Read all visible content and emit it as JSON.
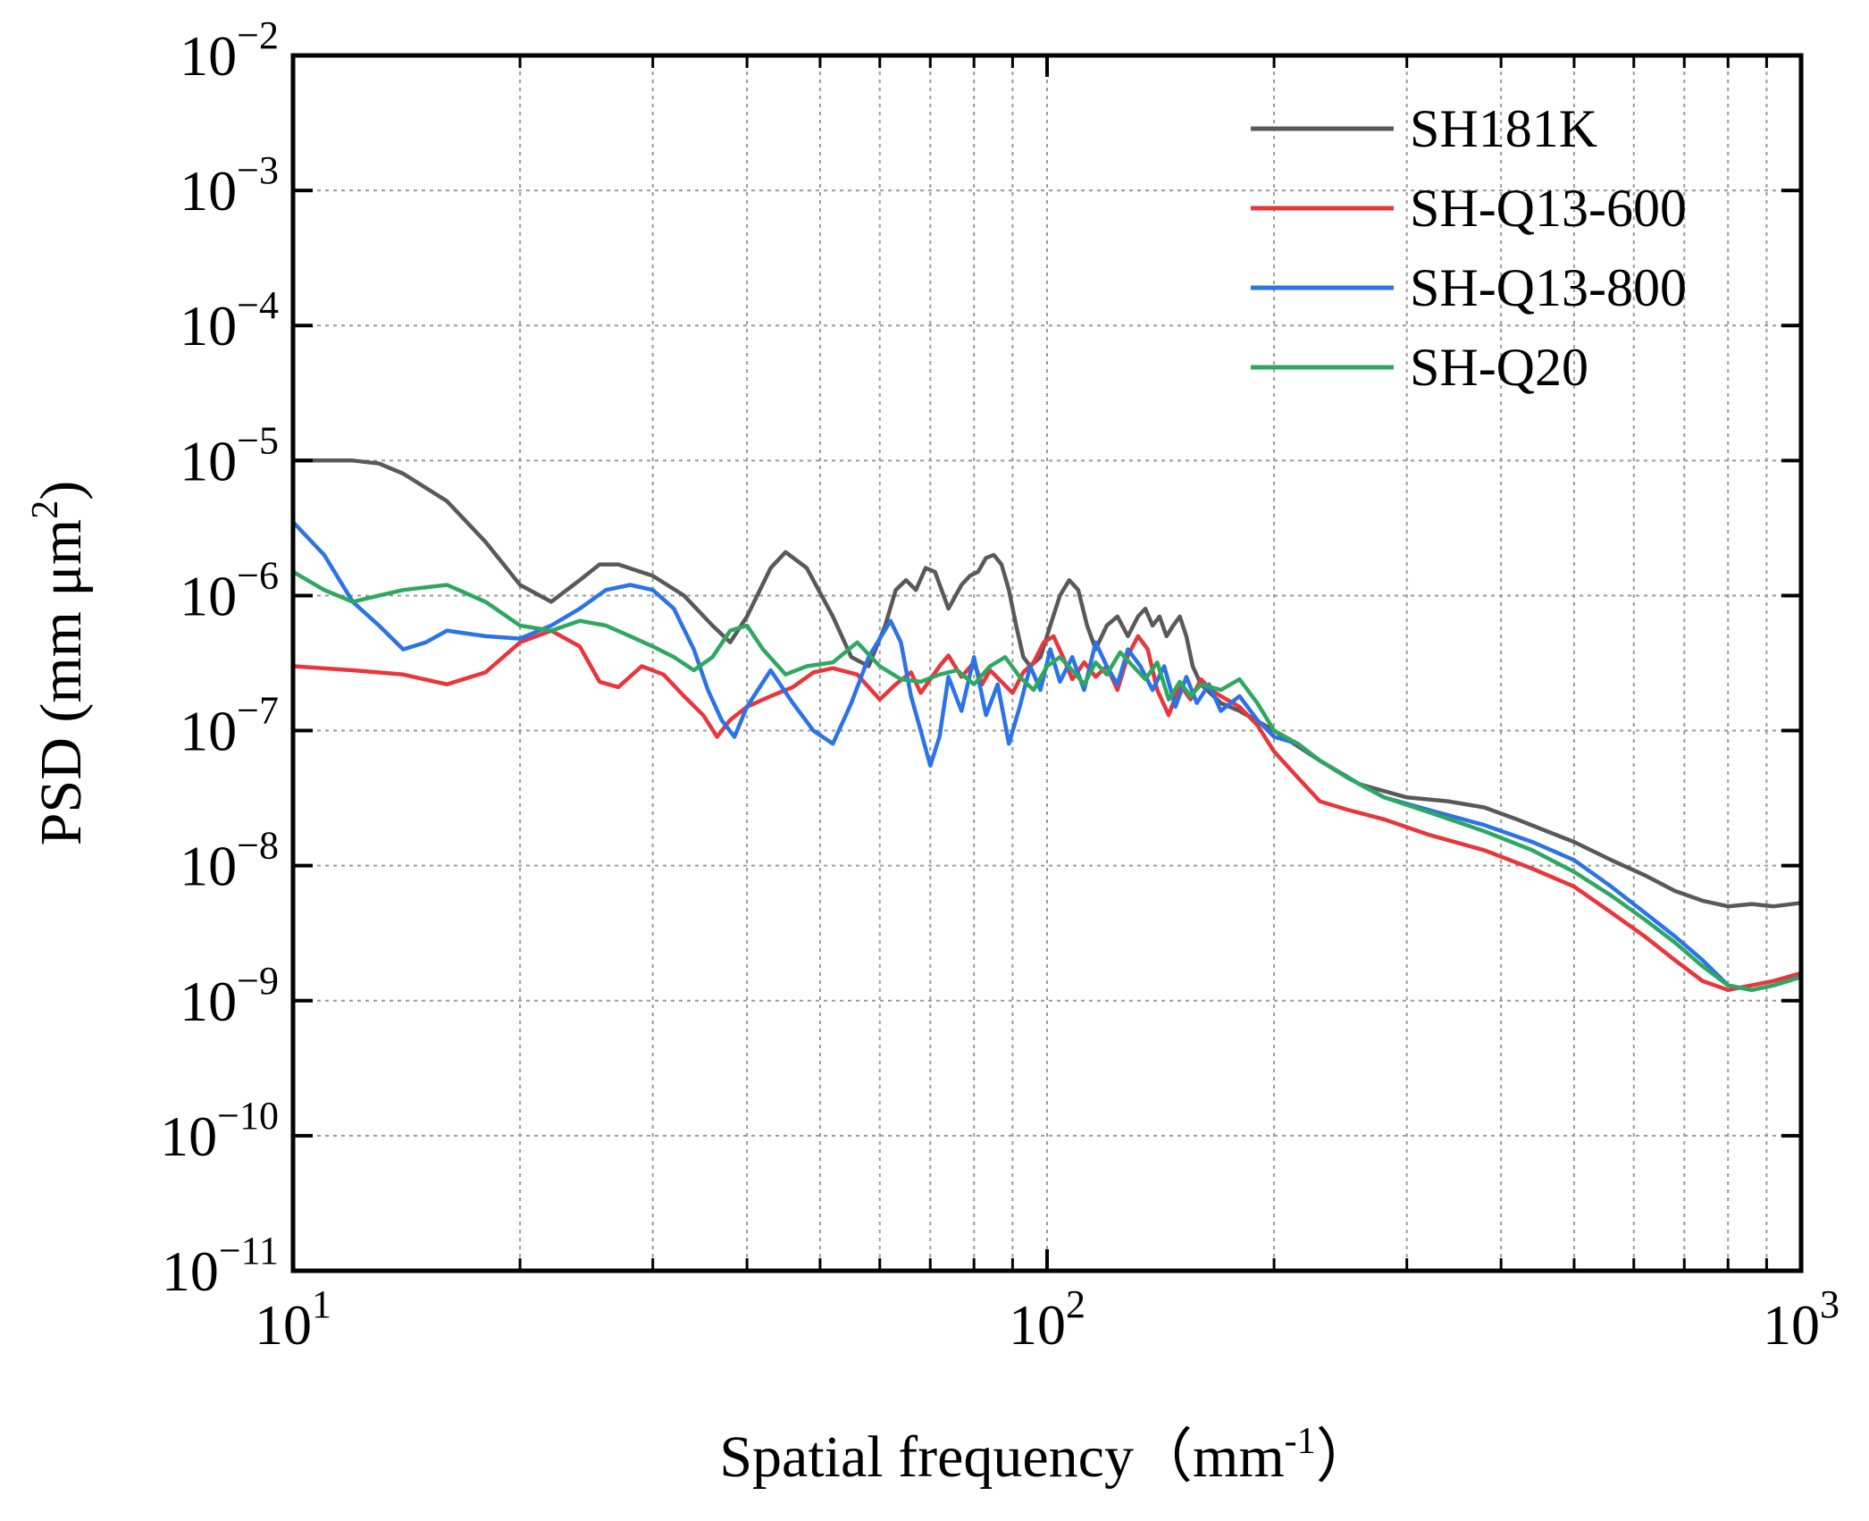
{
  "chart_data": {
    "type": "line",
    "xscale": "log",
    "yscale": "log",
    "xlim": [
      10,
      1000
    ],
    "ylim": [
      1e-11,
      0.01
    ],
    "grid": true,
    "legend_position": "top-right",
    "xlabel": {
      "main": "Spatial frequency",
      "open": "（",
      "unit": "mm",
      "sup": "-1",
      "close": "）"
    },
    "ylabel": {
      "main": "PSD (mm μm",
      "sup": "2",
      "close": ")"
    },
    "x_ticks": [
      {
        "base": "10",
        "exp": "1"
      },
      {
        "base": "10",
        "exp": "2"
      },
      {
        "base": "10",
        "exp": "3"
      }
    ],
    "y_ticks": [
      {
        "base": "10",
        "exp": "−2"
      },
      {
        "base": "10",
        "exp": "−3"
      },
      {
        "base": "10",
        "exp": "−4"
      },
      {
        "base": "10",
        "exp": "−5"
      },
      {
        "base": "10",
        "exp": "−6"
      },
      {
        "base": "10",
        "exp": "−7"
      },
      {
        "base": "10",
        "exp": "−8"
      },
      {
        "base": "10",
        "exp": "−9"
      },
      {
        "base": "10",
        "exp": "−10"
      },
      {
        "base": "10",
        "exp": "−11"
      }
    ],
    "series": [
      {
        "name": "SH181K",
        "color": "#595959",
        "x": [
          10,
          11,
          12,
          13,
          14,
          16,
          18,
          20,
          22,
          24,
          25.5,
          27,
          30,
          33,
          36,
          38,
          40,
          43,
          45,
          48,
          52,
          55,
          58,
          61,
          63,
          65,
          67,
          69,
          71,
          74,
          77,
          79,
          81,
          83,
          85,
          87,
          89,
          91,
          93,
          95,
          98,
          101,
          104,
          107,
          110,
          113,
          116,
          120,
          124,
          128,
          132,
          135,
          138,
          141,
          144,
          147,
          150,
          153,
          156,
          160,
          170,
          180,
          200,
          230,
          260,
          300,
          340,
          380,
          420,
          460,
          500,
          560,
          620,
          680,
          740,
          800,
          860,
          920,
          1000
        ],
        "y": [
          1e-05,
          1e-05,
          1e-05,
          9.5e-06,
          8e-06,
          5e-06,
          2.5e-06,
          1.2e-06,
          9e-07,
          1.3e-06,
          1.7e-06,
          1.7e-06,
          1.4e-06,
          1e-06,
          6e-07,
          4.5e-07,
          7e-07,
          1.6e-06,
          2.1e-06,
          1.6e-06,
          7e-07,
          3.5e-07,
          3e-07,
          6e-07,
          1.1e-06,
          1.3e-06,
          1.1e-06,
          1.6e-06,
          1.5e-06,
          8e-07,
          1.2e-06,
          1.4e-06,
          1.5e-06,
          1.9e-06,
          2e-06,
          1.7e-06,
          1.1e-06,
          6e-07,
          3.5e-07,
          3e-07,
          3.5e-07,
          6e-07,
          1e-06,
          1.3e-06,
          1.1e-06,
          6e-07,
          4e-07,
          6e-07,
          7e-07,
          5e-07,
          7e-07,
          8e-07,
          6e-07,
          7e-07,
          5e-07,
          6e-07,
          7e-07,
          5e-07,
          3e-07,
          2.2e-07,
          1.6e-07,
          1.4e-07,
          1e-07,
          6e-08,
          4e-08,
          3.2e-08,
          3e-08,
          2.7e-08,
          2.2e-08,
          1.8e-08,
          1.5e-08,
          1.1e-08,
          8.5e-09,
          6.5e-09,
          5.5e-09,
          5e-09,
          5.2e-09,
          5e-09,
          5.3e-09
        ]
      },
      {
        "name": "SH-Q13-600",
        "color": "#e8363a",
        "x": [
          10,
          12,
          14,
          16,
          18,
          20,
          22,
          24,
          25.5,
          27,
          29,
          31,
          33,
          35,
          36.5,
          38,
          40,
          43,
          46,
          49,
          52,
          56,
          60,
          63,
          66,
          68,
          70,
          72,
          74,
          77,
          80,
          82,
          84,
          87,
          90,
          93,
          96,
          99,
          102,
          105,
          108,
          112,
          116,
          120,
          124,
          128,
          132,
          136,
          140,
          145,
          150,
          155,
          160,
          165,
          170,
          180,
          190,
          200,
          215,
          230,
          250,
          280,
          320,
          380,
          440,
          500,
          560,
          620,
          680,
          740,
          800,
          860,
          920,
          1000
        ],
        "y": [
          3e-07,
          2.8e-07,
          2.6e-07,
          2.2e-07,
          2.7e-07,
          4.5e-07,
          5.5e-07,
          4.2e-07,
          2.3e-07,
          2.1e-07,
          3e-07,
          2.6e-07,
          1.8e-07,
          1.3e-07,
          9e-08,
          1.2e-07,
          1.5e-07,
          1.8e-07,
          2.1e-07,
          2.7e-07,
          2.9e-07,
          2.6e-07,
          1.7e-07,
          2.2e-07,
          2.7e-07,
          1.9e-07,
          2.4e-07,
          3e-07,
          3.6e-07,
          2.5e-07,
          3.2e-07,
          2.2e-07,
          2.8e-07,
          2.3e-07,
          1.9e-07,
          2.7e-07,
          3.2e-07,
          4.5e-07,
          5e-07,
          3.5e-07,
          2.4e-07,
          3.2e-07,
          2.5e-07,
          3e-07,
          2e-07,
          3.6e-07,
          5e-07,
          4e-07,
          2e-07,
          1.3e-07,
          2.2e-07,
          1.7e-07,
          2.4e-07,
          2e-07,
          1.8e-07,
          1.5e-07,
          1.1e-07,
          7e-08,
          4.5e-08,
          3e-08,
          2.6e-08,
          2.2e-08,
          1.7e-08,
          1.3e-08,
          9.5e-09,
          7e-09,
          4.5e-09,
          3e-09,
          2e-09,
          1.4e-09,
          1.2e-09,
          1.3e-09,
          1.4e-09,
          1.6e-09
        ]
      },
      {
        "name": "SH-Q13-800",
        "color": "#2a73e8",
        "x": [
          10,
          11,
          12,
          13,
          14,
          15,
          16,
          18,
          20,
          22,
          24,
          26,
          28,
          30,
          32,
          34,
          35.5,
          37,
          38.5,
          40,
          43,
          46,
          49,
          52,
          55,
          58,
          62,
          64,
          66,
          68,
          70,
          72,
          74,
          77,
          80,
          83,
          86,
          89,
          92,
          95,
          98,
          101,
          104,
          108,
          112,
          116,
          120,
          124,
          128,
          133,
          138,
          143,
          148,
          153,
          158,
          164,
          170,
          180,
          190,
          200,
          215,
          230,
          250,
          280,
          320,
          380,
          440,
          500,
          560,
          620,
          680,
          740,
          800,
          860,
          920,
          1000
        ],
        "y": [
          3.5e-06,
          2e-06,
          9e-07,
          6e-07,
          4e-07,
          4.5e-07,
          5.5e-07,
          5e-07,
          4.8e-07,
          6e-07,
          8e-07,
          1.1e-06,
          1.2e-06,
          1.1e-06,
          8e-07,
          4e-07,
          2e-07,
          1.2e-07,
          9e-08,
          1.5e-07,
          2.8e-07,
          1.6e-07,
          1e-07,
          8e-08,
          1.6e-07,
          3.5e-07,
          6.5e-07,
          4.5e-07,
          1.8e-07,
          1e-07,
          5.5e-08,
          9e-08,
          2.5e-07,
          1.4e-07,
          3.5e-07,
          1.3e-07,
          2.2e-07,
          8e-08,
          1.5e-07,
          3e-07,
          2e-07,
          4e-07,
          2.3e-07,
          3.5e-07,
          2e-07,
          4.5e-07,
          3e-07,
          2.2e-07,
          4e-07,
          3e-07,
          2e-07,
          3e-07,
          1.5e-07,
          2.5e-07,
          1.6e-07,
          2.2e-07,
          1.4e-07,
          1.8e-07,
          1.2e-07,
          9e-08,
          8e-08,
          6e-08,
          4.5e-08,
          3.2e-08,
          2.6e-08,
          2e-08,
          1.5e-08,
          1.1e-08,
          7e-09,
          4.5e-09,
          3e-09,
          2e-09,
          1.3e-09,
          1.2e-09,
          1.3e-09,
          1.5e-09
        ]
      },
      {
        "name": "SH-Q20",
        "color": "#2ea860",
        "x": [
          10,
          11,
          12,
          13,
          14,
          16,
          18,
          20,
          22,
          24,
          26,
          28,
          30,
          32,
          34,
          36,
          38,
          40,
          42,
          45,
          48,
          52,
          56,
          60,
          64,
          68,
          72,
          76,
          80,
          84,
          88,
          92,
          96,
          100,
          104,
          108,
          112,
          116,
          120,
          125,
          130,
          135,
          140,
          145,
          150,
          155,
          160,
          170,
          180,
          190,
          200,
          215,
          230,
          250,
          280,
          320,
          380,
          440,
          500,
          560,
          620,
          680,
          740,
          800,
          860,
          920,
          1000
        ],
        "y": [
          1.5e-06,
          1.1e-06,
          9e-07,
          1e-06,
          1.1e-06,
          1.2e-06,
          9e-07,
          6e-07,
          5.5e-07,
          6.5e-07,
          6e-07,
          5e-07,
          4.2e-07,
          3.5e-07,
          2.8e-07,
          3.5e-07,
          5.5e-07,
          6e-07,
          4e-07,
          2.6e-07,
          3e-07,
          3.2e-07,
          4.5e-07,
          3e-07,
          2.4e-07,
          2.3e-07,
          2.6e-07,
          2.8e-07,
          2.2e-07,
          3e-07,
          3.5e-07,
          2.5e-07,
          2e-07,
          3e-07,
          3.5e-07,
          2.8e-07,
          2.2e-07,
          3.2e-07,
          2.6e-07,
          3.8e-07,
          3e-07,
          2.4e-07,
          3.2e-07,
          1.7e-07,
          2.3e-07,
          1.8e-07,
          2.2e-07,
          2e-07,
          2.4e-07,
          1.6e-07,
          1e-07,
          8e-08,
          6e-08,
          4.5e-08,
          3.2e-08,
          2.5e-08,
          1.8e-08,
          1.3e-08,
          9e-09,
          6e-09,
          4e-09,
          2.7e-09,
          1.8e-09,
          1.3e-09,
          1.2e-09,
          1.3e-09,
          1.5e-09
        ]
      }
    ]
  }
}
